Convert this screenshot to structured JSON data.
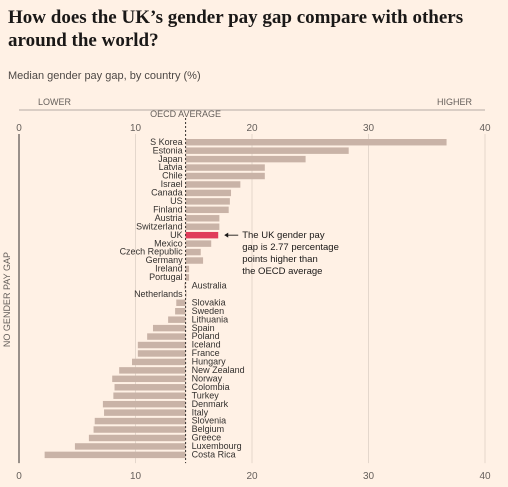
{
  "header": {
    "title": "How does the UK’s gender pay gap compare with others around the world?",
    "subtitle": "Median gender pay gap, by country (%)"
  },
  "scale": {
    "lower_label": "LOWER",
    "higher_label": "HIGHER",
    "oecd_label": "OECD AVERAGE",
    "no_gap_label": "NO GENDER PAY GAP"
  },
  "annotation": {
    "lines": [
      "The UK gender pay",
      "gap is 2.77 percentage",
      "points higher than",
      "the OECD average"
    ]
  },
  "colors": {
    "background": "#fff1e5",
    "bar": "#c9b3a7",
    "highlight": "#e03c5a",
    "axis": "#33302e",
    "grid": "#d9ccc2"
  },
  "chart_data": {
    "type": "bar",
    "orientation": "horizontal",
    "title": "How does the UK’s gender pay gap compare with others around the world?",
    "subtitle": "Median gender pay gap, by country (%)",
    "xlim": [
      0,
      40
    ],
    "xticks": [
      0,
      10,
      20,
      30,
      40
    ],
    "oecd_average": 14.3,
    "highlight": "UK",
    "categories": [
      "S Korea",
      "Estonia",
      "Japan",
      "Latvia",
      "Chile",
      "Israel",
      "Canada",
      "US",
      "Finland",
      "Austria",
      "Switzerland",
      "UK",
      "Mexico",
      "Czech Republic",
      "Germany",
      "Ireland",
      "Portugal",
      "Australia",
      "Netherlands",
      "Slovakia",
      "Sweden",
      "Lithuania",
      "Spain",
      "Poland",
      "Iceland",
      "France",
      "Hungary",
      "New Zealand",
      "Norway",
      "Colombia",
      "Turkey",
      "Denmark",
      "Italy",
      "Slovenia",
      "Belgium",
      "Greece",
      "Luxembourg",
      "Costa Rica"
    ],
    "values": [
      36.7,
      28.3,
      24.6,
      21.1,
      21.1,
      19.0,
      18.2,
      18.1,
      18.0,
      17.2,
      17.2,
      17.1,
      16.5,
      15.6,
      15.8,
      14.6,
      14.6,
      14.2,
      14.3,
      13.5,
      13.4,
      12.8,
      11.5,
      11.0,
      10.2,
      10.2,
      9.7,
      8.6,
      8.0,
      8.2,
      8.1,
      7.2,
      7.3,
      6.5,
      6.4,
      6.0,
      4.8,
      2.2
    ]
  }
}
